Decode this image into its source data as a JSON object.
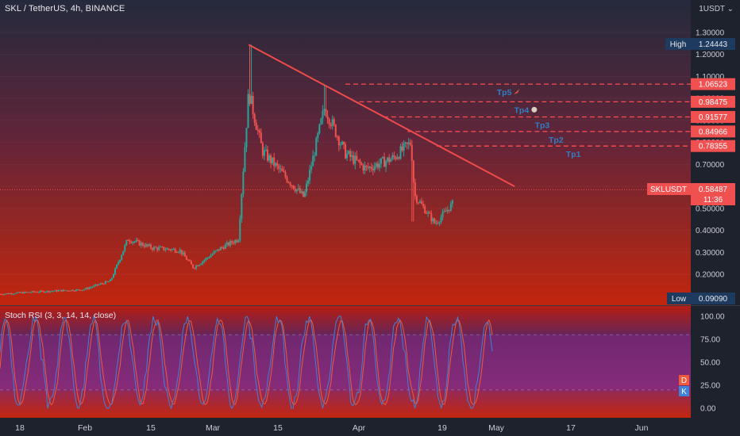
{
  "header": {
    "symbol_line": "SKL / TetherUS, 4h, BINANCE",
    "currency": "1USDT ⌄"
  },
  "colors": {
    "bg_top": "#242a3c",
    "bg_bottom": "#c2260e",
    "up": "#26a69a",
    "down": "#ef5350",
    "trendline": "#f04b4b",
    "target_line": "#ff4d4d",
    "label_text": "#2f7fc2",
    "rsi_k": "#3f82d6",
    "rsi_d": "#f05a3a",
    "price_badge": "#f05050"
  },
  "price_axis": {
    "ticks": [
      "1.30000",
      "1.20000",
      "1.10000",
      "1.00000",
      "0.90000",
      "0.80000",
      "0.70000",
      "0.60000",
      "0.50000",
      "0.40000",
      "0.30000",
      "0.20000"
    ],
    "high_label": "High",
    "high_value": "1.24443",
    "low_label": "Low",
    "low_value": "0.09090",
    "symbol_badge": "SKLUSDT",
    "current_value": "0.58487",
    "countdown": "11:36"
  },
  "targets": [
    {
      "value": "1.06523",
      "label": "Tp5",
      "icon": "rocket-icon"
    },
    {
      "value": "0.98475",
      "label": "Tp4",
      "icon": "money-bag-icon"
    },
    {
      "value": "0.91577",
      "label": "Tp3"
    },
    {
      "value": "0.84966",
      "label": "Tp2"
    },
    {
      "value": "0.78355",
      "label": "Tp1"
    }
  ],
  "rsi": {
    "title": "Stoch RSI (3, 3, 14, 14, close)",
    "ticks": [
      "100.00",
      "75.00",
      "50.00",
      "25.00",
      "0.00"
    ],
    "badge_d": "D",
    "badge_k": "K"
  },
  "time_axis": [
    "18",
    "Feb",
    "15",
    "Mar",
    "15",
    "Apr",
    "19",
    "May",
    "17",
    "Jun"
  ],
  "chart_data": {
    "type": "candlestick",
    "title": "SKL / TetherUS, 4h, BINANCE",
    "ylim": [
      0.09,
      1.3
    ],
    "high": 1.24443,
    "low": 0.0909,
    "last": 0.58487,
    "price_path": [
      {
        "t": 0.0,
        "p": 0.11
      },
      {
        "t": 0.05,
        "p": 0.12
      },
      {
        "t": 0.12,
        "p": 0.13
      },
      {
        "t": 0.16,
        "p": 0.17
      },
      {
        "t": 0.185,
        "p": 0.36
      },
      {
        "t": 0.22,
        "p": 0.32
      },
      {
        "t": 0.26,
        "p": 0.31
      },
      {
        "t": 0.28,
        "p": 0.23
      },
      {
        "t": 0.32,
        "p": 0.32
      },
      {
        "t": 0.345,
        "p": 0.36
      },
      {
        "t": 0.36,
        "p": 1.03
      },
      {
        "t": 0.38,
        "p": 0.76
      },
      {
        "t": 0.44,
        "p": 0.55
      },
      {
        "t": 0.47,
        "p": 0.96
      },
      {
        "t": 0.5,
        "p": 0.75
      },
      {
        "t": 0.53,
        "p": 0.68
      },
      {
        "t": 0.57,
        "p": 0.73
      },
      {
        "t": 0.595,
        "p": 0.8
      },
      {
        "t": 0.6,
        "p": 0.56
      },
      {
        "t": 0.63,
        "p": 0.43
      },
      {
        "t": 0.655,
        "p": 0.52
      }
    ],
    "trendline": [
      {
        "t": 0.36,
        "p": 1.24443
      },
      {
        "t": 0.745,
        "p": 0.6
      }
    ],
    "stoch_rsi": {
      "k_range": [
        0,
        100
      ],
      "bands": [
        20,
        80
      ]
    }
  }
}
